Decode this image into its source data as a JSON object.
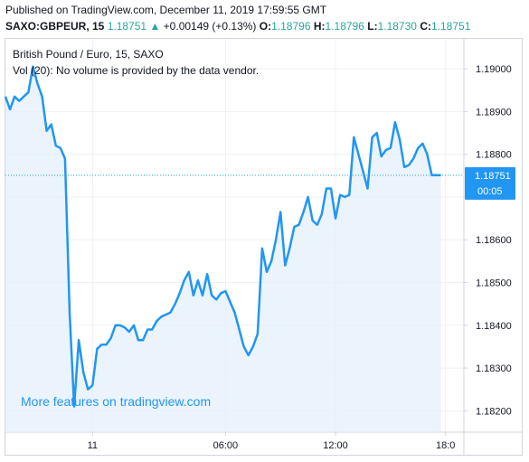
{
  "header": {
    "published": "Published on TradingView.com, December 11, 2019 17:59:55 GMT",
    "symbol": "SAXO:GBPEUR, 15",
    "last": "1.18751",
    "change_arrow": "▲",
    "change": "+0.00149 (+0.13%)",
    "open_label": "O:",
    "open": "1.18796",
    "high_label": "H:",
    "high": "1.18796",
    "low_label": "L:",
    "low": "1.18730",
    "close_label": "C:",
    "close": "1.18751"
  },
  "legend": {
    "title": "British Pound / Euro, 15, SAXO",
    "volume_note": "Vol (20): No volume is provided by the data vendor."
  },
  "promo": "More features on tradingview.com",
  "price_label": {
    "price": "1.18751",
    "countdown": "00:05",
    "color": "#2196f3"
  },
  "colors": {
    "line": "#2196f3",
    "area": "#e3f0fc",
    "grid": "#eef0f3",
    "axis_text": "#131722"
  },
  "chart_data": {
    "type": "area",
    "ylim": [
      1.1815,
      1.1907
    ],
    "xlim": [
      0,
      100
    ],
    "y_ticks": [
      1.19,
      1.189,
      1.188,
      1.187,
      1.186,
      1.185,
      1.184,
      1.183,
      1.182
    ],
    "y_tick_labels": [
      "1.19000",
      "1.18900",
      "1.18800",
      "",
      "1.18600",
      "1.18500",
      "1.18400",
      "1.18300",
      "1.18200"
    ],
    "x_ticks": [
      19,
      48,
      72,
      96
    ],
    "x_tick_labels": [
      "11",
      "06:00",
      "12:00",
      "18:0"
    ],
    "last_price": 1.18751,
    "x": [
      0,
      1,
      2,
      3,
      4,
      5,
      6,
      7,
      8,
      9,
      10,
      11,
      12,
      13,
      14,
      15,
      16,
      17,
      18,
      19,
      20,
      21,
      22,
      23,
      24,
      25,
      26,
      27,
      28,
      29,
      30,
      31,
      32,
      33,
      34,
      35,
      36,
      37,
      38,
      39,
      40,
      41,
      42,
      43,
      44,
      45,
      46,
      47,
      48,
      49,
      50,
      51,
      52,
      53,
      54,
      55,
      56,
      57,
      58,
      59,
      60,
      61,
      62,
      63,
      64,
      65,
      66,
      67,
      68,
      69,
      70,
      71,
      72,
      73,
      74,
      75,
      76,
      77,
      78,
      79,
      80,
      81,
      82,
      83,
      84,
      85,
      86,
      87,
      88,
      89,
      90,
      91,
      92,
      93,
      94,
      95
    ],
    "y": [
      1.18935,
      1.18905,
      1.18935,
      1.18925,
      1.18935,
      1.18945,
      1.19005,
      1.18965,
      1.18935,
      1.18855,
      1.1887,
      1.1882,
      1.18815,
      1.1879,
      1.1843,
      1.1821,
      1.18365,
      1.1829,
      1.1825,
      1.1826,
      1.18345,
      1.18355,
      1.18355,
      1.1837,
      1.184,
      1.184,
      1.18395,
      1.18385,
      1.184,
      1.18365,
      1.18365,
      1.1839,
      1.1839,
      1.1841,
      1.1842,
      1.18425,
      1.1843,
      1.1845,
      1.18475,
      1.18505,
      1.18525,
      1.1847,
      1.18505,
      1.1847,
      1.1852,
      1.1847,
      1.1846,
      1.18475,
      1.1848,
      1.18455,
      1.1843,
      1.1839,
      1.1835,
      1.1833,
      1.1835,
      1.1838,
      1.1858,
      1.18525,
      1.1855,
      1.186,
      1.18665,
      1.1854,
      1.1858,
      1.1863,
      1.18635,
      1.18665,
      1.187,
      1.18645,
      1.18635,
      1.1866,
      1.1872,
      1.1872,
      1.1865,
      1.18705,
      1.187,
      1.18705,
      1.1884,
      1.188,
      1.1876,
      1.1872,
      1.1884,
      1.1885,
      1.18795,
      1.1881,
      1.18815,
      1.18875,
      1.18835,
      1.1877,
      1.18775,
      1.1879,
      1.18815,
      1.18825,
      1.188,
      1.18751,
      1.18751,
      1.18751
    ]
  }
}
